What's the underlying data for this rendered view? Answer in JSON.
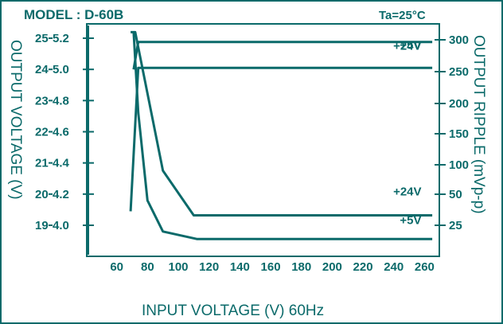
{
  "header": {
    "model": "MODEL : D-60B",
    "temp": "Ta=25°C"
  },
  "colors": {
    "ink": "#0b6a6a",
    "background": "#ffffff"
  },
  "chart_data": {
    "type": "line",
    "xlabel": "INPUT VOLTAGE (V) 60Hz",
    "ylabel_left": "OUTPUT VOLTAGE (V)",
    "ylabel_right": "OUTPUT RIPPLE (mVp-p)",
    "x_ticks": [
      "60",
      "80",
      "100",
      "120",
      "140",
      "160",
      "180",
      "200",
      "220",
      "240",
      "260"
    ],
    "xlim": [
      40,
      266
    ],
    "left_outer_ticks": [
      "25",
      "24",
      "23",
      "22",
      "21",
      "20",
      "19"
    ],
    "left_inner_ticks": [
      "5.2",
      "5.0",
      "4.8",
      "4.6",
      "4.4",
      "4.2",
      "4.0"
    ],
    "left_outer_range": [
      25,
      19
    ],
    "left_inner_range": [
      5.2,
      4.0
    ],
    "right_ticks": [
      "300",
      "250",
      "200",
      "150",
      "100",
      "50",
      "25"
    ],
    "right_tick_values": [
      300,
      250,
      200,
      150,
      100,
      50,
      25
    ],
    "series": [
      {
        "name": "+5V",
        "axis": "voltage_5v",
        "points": [
          [
            69,
            4.09
          ],
          [
            74,
            5.01
          ],
          [
            265,
            5.01
          ]
        ]
      },
      {
        "name": "+24V",
        "axis": "voltage_24v",
        "points": [
          [
            71,
            24.0
          ],
          [
            74,
            24.88
          ],
          [
            265,
            24.88
          ]
        ]
      },
      {
        "name": "+24V",
        "axis": "ripple",
        "points": [
          [
            69,
            312
          ],
          [
            72,
            312
          ],
          [
            90,
            90
          ],
          [
            110,
            33
          ],
          [
            265,
            33
          ]
        ]
      },
      {
        "name": "+5V",
        "axis": "ripple",
        "points": [
          [
            71,
            312
          ],
          [
            74,
            185
          ],
          [
            80,
            45
          ],
          [
            90,
            20
          ],
          [
            112,
            14
          ],
          [
            265,
            14
          ]
        ]
      }
    ],
    "annotations": [
      {
        "text": "+5V",
        "x": 258,
        "value": 5.13,
        "axis": "voltage_5v"
      },
      {
        "text": "+24V",
        "x": 258,
        "value": 24.63,
        "axis": "voltage_24v"
      },
      {
        "text": "+24V",
        "x": 258,
        "value": 49,
        "axis": "ripple"
      },
      {
        "text": "+5V",
        "x": 258,
        "value": 26,
        "axis": "ripple"
      }
    ]
  }
}
